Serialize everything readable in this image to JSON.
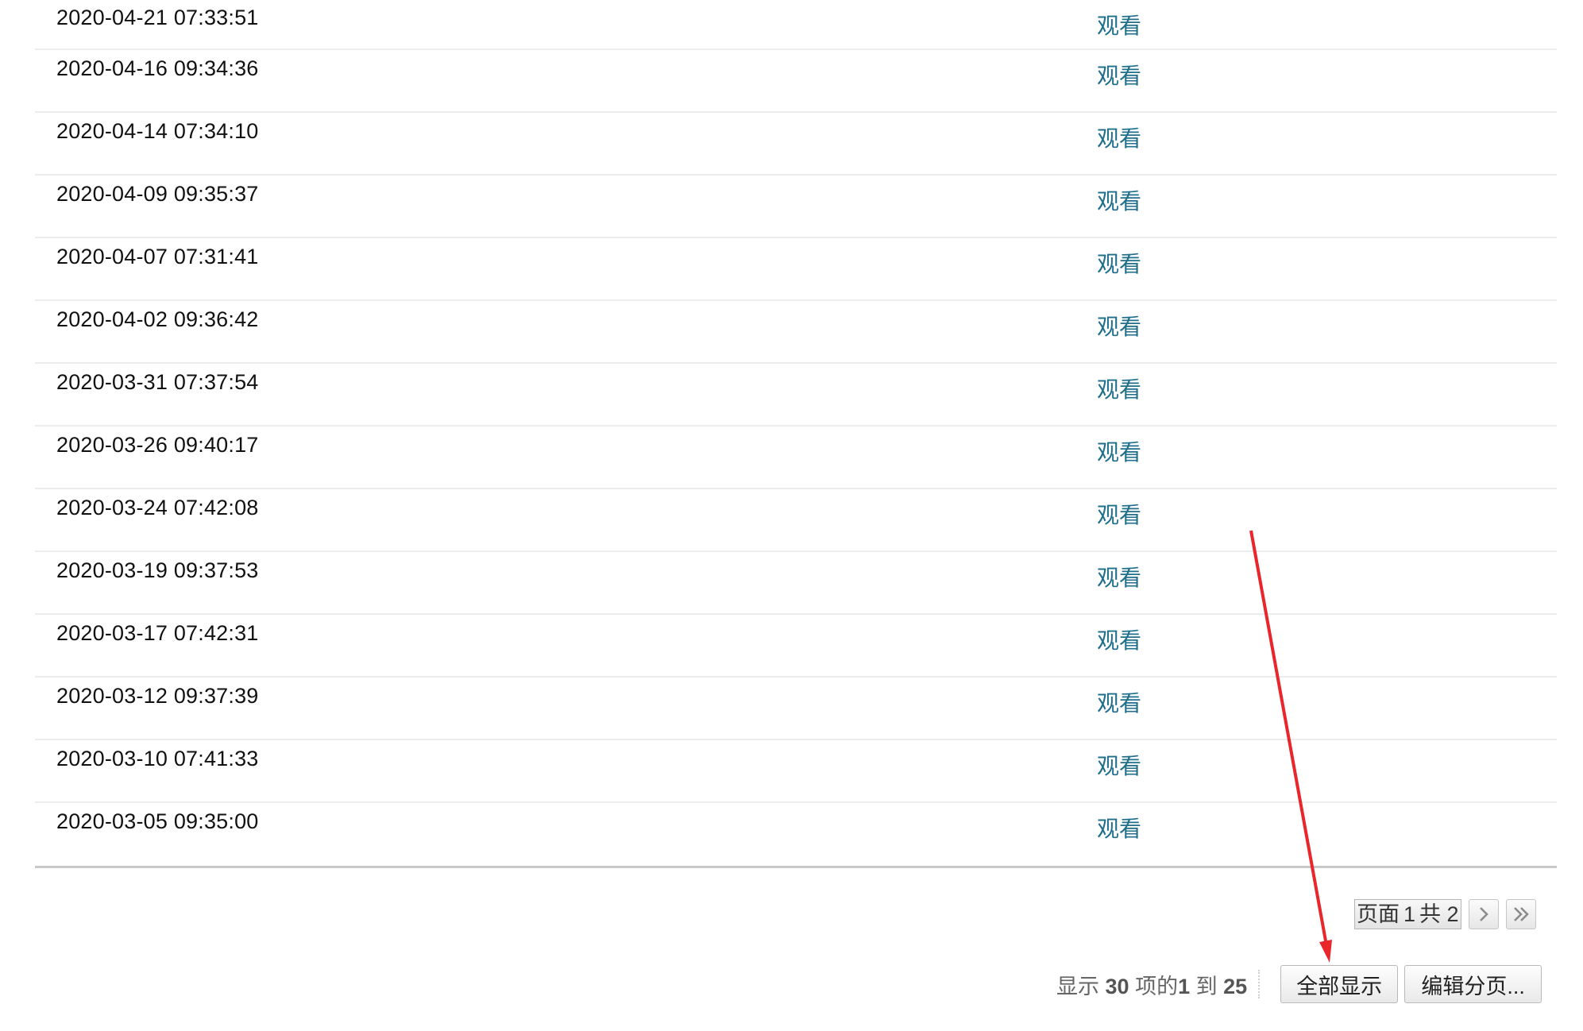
{
  "rows": [
    {
      "date": "2020-04-21 07:33:51",
      "action": "观看"
    },
    {
      "date": "2020-04-16 09:34:36",
      "action": "观看"
    },
    {
      "date": "2020-04-14 07:34:10",
      "action": "观看"
    },
    {
      "date": "2020-04-09 09:35:37",
      "action": "观看"
    },
    {
      "date": "2020-04-07 07:31:41",
      "action": "观看"
    },
    {
      "date": "2020-04-02 09:36:42",
      "action": "观看"
    },
    {
      "date": "2020-03-31 07:37:54",
      "action": "观看"
    },
    {
      "date": "2020-03-26 09:40:17",
      "action": "观看"
    },
    {
      "date": "2020-03-24 07:42:08",
      "action": "观看"
    },
    {
      "date": "2020-03-19 09:37:53",
      "action": "观看"
    },
    {
      "date": "2020-03-17 07:42:31",
      "action": "观看"
    },
    {
      "date": "2020-03-12 09:37:39",
      "action": "观看"
    },
    {
      "date": "2020-03-10 07:41:33",
      "action": "观看"
    },
    {
      "date": "2020-03-05 09:35:00",
      "action": "观看"
    }
  ],
  "pager": {
    "prefix": "页面",
    "current_page": "1",
    "total_prefix": "共",
    "total_pages": "2",
    "next_icon": "chevron-right-icon",
    "last_icon": "double-chevron-right-icon"
  },
  "summary": {
    "prefix": "显示",
    "total": "30",
    "middle": "项的",
    "from": "1",
    "to_word": "到",
    "to": "25"
  },
  "buttons": {
    "show_all": "全部显示",
    "edit_paging": "编辑分页..."
  },
  "colors": {
    "link": "#1f6f8b",
    "annotation_arrow": "#e8262b"
  }
}
